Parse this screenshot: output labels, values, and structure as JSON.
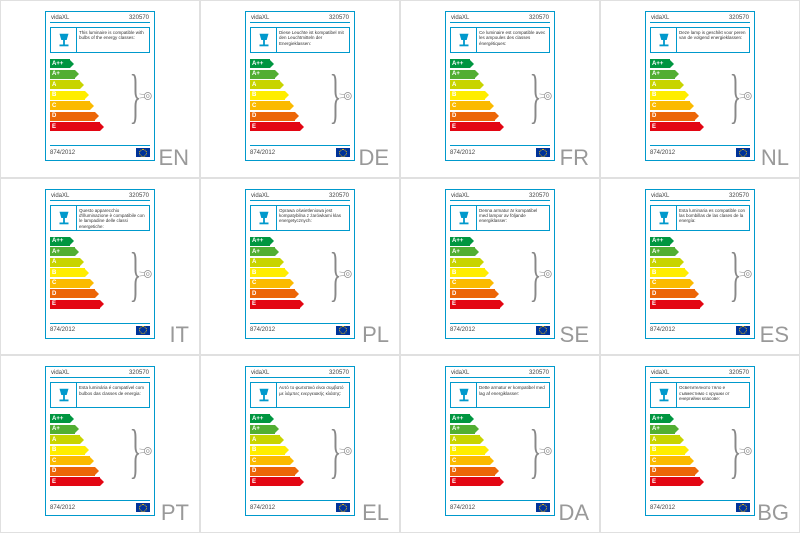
{
  "brand": "vidaXL",
  "product_code": "320570",
  "regulation": "874/2012",
  "energy_classes": [
    {
      "label": "A++",
      "width": 20,
      "color": "#009640"
    },
    {
      "label": "A+",
      "width": 25,
      "color": "#52ae32"
    },
    {
      "label": "A",
      "width": 30,
      "color": "#c8d400"
    },
    {
      "label": "B",
      "width": 35,
      "color": "#ffed00"
    },
    {
      "label": "C",
      "width": 40,
      "color": "#fbba00"
    },
    {
      "label": "D",
      "width": 45,
      "color": "#ec6608"
    },
    {
      "label": "E",
      "width": 50,
      "color": "#e30613"
    }
  ],
  "cells": [
    {
      "lang": "EN",
      "desc": "This luminaire is compatible with bulbs of the energy classes:"
    },
    {
      "lang": "DE",
      "desc": "Diese Leuchte ist kompatibel mit den Leuchtmitteln der Energieklassen:"
    },
    {
      "lang": "FR",
      "desc": "Ce luminaire est compatible avec les ampoules des classes énergétiques:"
    },
    {
      "lang": "NL",
      "desc": "Deze lamp is geschikt voor peren van de volgend energieklassen:"
    },
    {
      "lang": "IT",
      "desc": "Questo apparecchio d'illuminazione è compatibile con le lampadine delle classi energetiche:"
    },
    {
      "lang": "PL",
      "desc": "Oprawa oświetleniowa jest kompatybilna z żarówkami klas energetycznych:"
    },
    {
      "lang": "SE",
      "desc": "Denna armatur är kompatibel med lampor av följande energiklasser:"
    },
    {
      "lang": "ES",
      "desc": "Esta luminaria es compatible con las bombillas de las clases de la energía:"
    },
    {
      "lang": "PT",
      "desc": "Esta luminária é compatível com bulbos das classes de energia:"
    },
    {
      "lang": "EL",
      "desc": "Αυτό το φωτιστικό είναι συμβατό με λάμπες ενεργειακής κλάσης:"
    },
    {
      "lang": "DA",
      "desc": "Dette armatur er kompatibel med lag af energiklasser:"
    },
    {
      "lang": "BG",
      "desc": "Осветителното тяло е съвместимо с крушки от енергийни класове:"
    }
  ]
}
